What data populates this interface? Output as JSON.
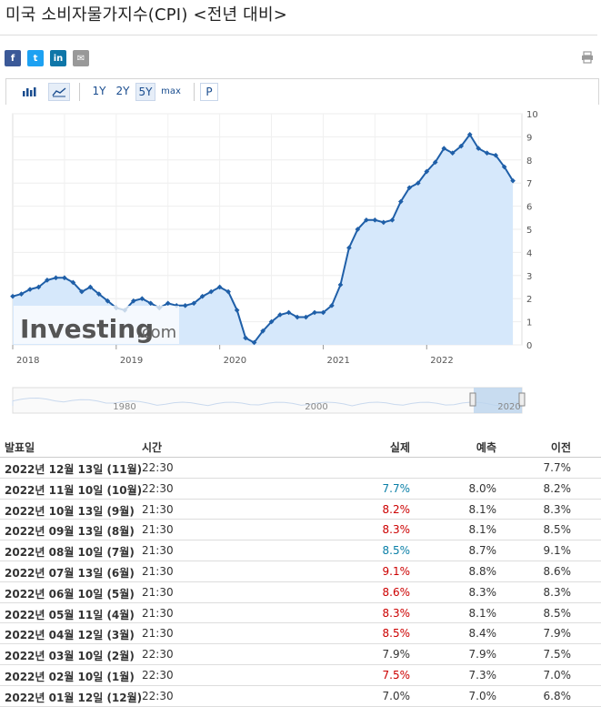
{
  "title": "미국 소비자물가지수(CPI) <전년 대비>",
  "share": [
    {
      "icon": "facebook-icon",
      "glyph": "f",
      "color": "#3b5998"
    },
    {
      "icon": "twitter-icon",
      "glyph": "t",
      "color": "#1da1f2"
    },
    {
      "icon": "linkedin-icon",
      "glyph": "in",
      "color": "#0e76a8"
    },
    {
      "icon": "email-icon",
      "glyph": "✉",
      "color": "#999999"
    }
  ],
  "toolbar": {
    "ranges": [
      "1Y",
      "2Y",
      "5Y",
      "max"
    ],
    "selected_range": "5Y",
    "p_label": "P"
  },
  "watermark": {
    "brand": "Investing",
    "suffix": ".com"
  },
  "chart_data": {
    "type": "area",
    "x_tick_labels": [
      "2018",
      "2019",
      "2020",
      "2021",
      "2022"
    ],
    "y_ticks": [
      0,
      1,
      2,
      3,
      4,
      5,
      6,
      7,
      8,
      9,
      10
    ],
    "ylim": [
      0,
      10
    ],
    "grid": true,
    "x_range": [
      2018.0,
      2022.92
    ],
    "series": [
      {
        "x": [
          2018.0,
          2018.083,
          2018.167,
          2018.25,
          2018.333,
          2018.417,
          2018.5,
          2018.583,
          2018.667,
          2018.75,
          2018.833,
          2018.917,
          2019.0,
          2019.083,
          2019.167,
          2019.25,
          2019.333,
          2019.417,
          2019.5,
          2019.583,
          2019.667,
          2019.75,
          2019.833,
          2019.917,
          2020.0,
          2020.083,
          2020.167,
          2020.25,
          2020.333,
          2020.417,
          2020.5,
          2020.583,
          2020.667,
          2020.75,
          2020.833,
          2020.917,
          2021.0,
          2021.083,
          2021.167,
          2021.25,
          2021.333,
          2021.417,
          2021.5,
          2021.583,
          2021.667,
          2021.75,
          2021.833,
          2021.917,
          2022.0,
          2022.083,
          2022.167,
          2022.25,
          2022.333,
          2022.417,
          2022.5,
          2022.583,
          2022.667,
          2022.75,
          2022.833
        ],
        "values": [
          2.1,
          2.2,
          2.4,
          2.5,
          2.8,
          2.9,
          2.9,
          2.7,
          2.3,
          2.5,
          2.2,
          1.9,
          1.6,
          1.5,
          1.9,
          2.0,
          1.8,
          1.6,
          1.8,
          1.7,
          1.7,
          1.8,
          2.1,
          2.3,
          2.5,
          2.3,
          1.5,
          0.3,
          0.1,
          0.6,
          1.0,
          1.3,
          1.4,
          1.2,
          1.2,
          1.4,
          1.4,
          1.7,
          2.6,
          4.2,
          5.0,
          5.4,
          5.4,
          5.3,
          5.4,
          6.2,
          6.8,
          7.0,
          7.5,
          7.9,
          8.5,
          8.3,
          8.6,
          9.1,
          8.5,
          8.3,
          8.2,
          7.7,
          7.1
        ]
      }
    ],
    "navigator": {
      "labels": [
        "1980",
        "2000",
        "2020"
      ]
    }
  },
  "table": {
    "headers": {
      "date": "발표일",
      "time": "시간",
      "actual": "실제",
      "forecast": "예측",
      "previous": "이전"
    },
    "rows": [
      {
        "date": "2022년 12월 13일 (11월)",
        "time": "22:30",
        "actual": "",
        "actual_color": "",
        "forecast": "",
        "previous": "7.7%"
      },
      {
        "date": "2022년 11월 10일 (10월)",
        "time": "22:30",
        "actual": "7.7%",
        "actual_color": "green",
        "forecast": "8.0%",
        "previous": "8.2%"
      },
      {
        "date": "2022년 10월 13일 (9월)",
        "time": "21:30",
        "actual": "8.2%",
        "actual_color": "red",
        "forecast": "8.1%",
        "previous": "8.3%"
      },
      {
        "date": "2022년 09월 13일 (8월)",
        "time": "21:30",
        "actual": "8.3%",
        "actual_color": "red",
        "forecast": "8.1%",
        "previous": "8.5%"
      },
      {
        "date": "2022년 08월 10일 (7월)",
        "time": "21:30",
        "actual": "8.5%",
        "actual_color": "green",
        "forecast": "8.7%",
        "previous": "9.1%"
      },
      {
        "date": "2022년 07월 13일 (6월)",
        "time": "21:30",
        "actual": "9.1%",
        "actual_color": "red",
        "forecast": "8.8%",
        "previous": "8.6%"
      },
      {
        "date": "2022년 06월 10일 (5월)",
        "time": "21:30",
        "actual": "8.6%",
        "actual_color": "red",
        "forecast": "8.3%",
        "previous": "8.3%"
      },
      {
        "date": "2022년 05월 11일 (4월)",
        "time": "21:30",
        "actual": "8.3%",
        "actual_color": "red",
        "forecast": "8.1%",
        "previous": "8.5%"
      },
      {
        "date": "2022년 04월 12일 (3월)",
        "time": "21:30",
        "actual": "8.5%",
        "actual_color": "red",
        "forecast": "8.4%",
        "previous": "7.9%"
      },
      {
        "date": "2022년 03월 10일 (2월)",
        "time": "22:30",
        "actual": "7.9%",
        "actual_color": "",
        "forecast": "7.9%",
        "previous": "7.5%"
      },
      {
        "date": "2022년 02월 10일 (1월)",
        "time": "22:30",
        "actual": "7.5%",
        "actual_color": "red",
        "forecast": "7.3%",
        "previous": "7.0%"
      },
      {
        "date": "2022년 01월 12일 (12월)",
        "time": "22:30",
        "actual": "7.0%",
        "actual_color": "",
        "forecast": "7.0%",
        "previous": "6.8%"
      }
    ]
  }
}
